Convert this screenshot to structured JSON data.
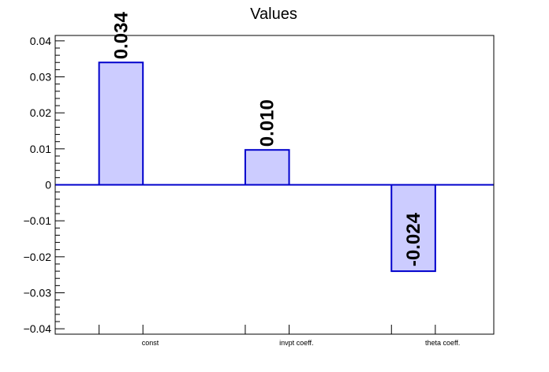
{
  "chart_data": {
    "type": "bar",
    "title": "Values",
    "categories": [
      "const",
      "invpt coeff.",
      "theta coeff."
    ],
    "values": [
      0.034,
      0.0097,
      -0.024
    ],
    "data_labels": [
      "0.034",
      "0.010",
      "-0.024"
    ],
    "yticks": [
      {
        "value": 0.04,
        "label": "0.04"
      },
      {
        "value": 0.03,
        "label": "0.03"
      },
      {
        "value": 0.02,
        "label": "0.02"
      },
      {
        "value": 0.01,
        "label": "0.01"
      },
      {
        "value": 0,
        "label": "0"
      },
      {
        "value": -0.01,
        "label": "−0.01"
      },
      {
        "value": -0.02,
        "label": "−0.02"
      },
      {
        "value": -0.03,
        "label": "−0.03"
      },
      {
        "value": -0.04,
        "label": "−0.04"
      }
    ],
    "ylim": [
      -0.0415,
      0.0415
    ],
    "xlabel": "",
    "ylabel": "",
    "grid": false,
    "bar_fill": "#ccccff",
    "bar_stroke": "#0000cc",
    "axis_color": "#000000"
  }
}
